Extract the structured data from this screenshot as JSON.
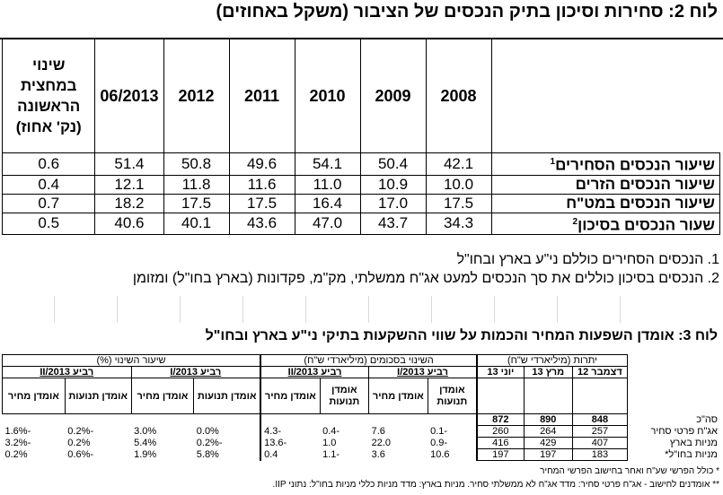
{
  "table2": {
    "title": "לוח 2: סחירות וסיכון בתיק הנכסים של הציבור (משקל באחוזים)",
    "headers": [
      "2008",
      "2009",
      "2010",
      "2011",
      "2012",
      "06/2013"
    ],
    "change_header": "שינוי במחצית הראשונה (נק' אחוז)",
    "rows": [
      {
        "label": "שיעור הנכסים הסחירים",
        "sup": "1",
        "values": [
          "42.1",
          "50.4",
          "54.1",
          "49.6",
          "50.8",
          "51.4"
        ],
        "change": "0.6"
      },
      {
        "label": "שיעור הנכסים הזרים",
        "sup": "",
        "values": [
          "10.0",
          "10.9",
          "11.0",
          "11.6",
          "11.8",
          "12.1"
        ],
        "change": "0.4"
      },
      {
        "label": "שיעור הנכסים במט\"ח",
        "sup": "",
        "values": [
          "17.5",
          "17.0",
          "16.4",
          "17.5",
          "17.5",
          "18.2"
        ],
        "change": "0.7"
      },
      {
        "label": "שעור הנכסים בסיכון",
        "sup": "2",
        "values": [
          "34.3",
          "43.7",
          "47.0",
          "43.6",
          "40.1",
          "40.6"
        ],
        "change": "0.5"
      }
    ],
    "footnotes": [
      "1. הנכסים הסחירים כוללם ני\"ע בארץ ובחו\"ל",
      "2. הנכסים בסיכון כוללים את סך הנכסים למעט אג\"ח ממשלתי, מק\"מ, פקדונות (בארץ בחו\"ל) ומזומן"
    ]
  },
  "table3": {
    "title": "לוח 3: אומדן השפעות המחיר והכמות על שווי ההשקעות בתיקי ני\"ע בארץ ובחו\"ל",
    "groups": {
      "balances": "יתרות (מיליארדי ש\"ח)",
      "change_amount": "השינוי בסכומים (מיליארדי ש\"ח)",
      "change_rate": "שיעור השינוי (%)"
    },
    "subheaders": {
      "dec12": "דצמבר 12",
      "mar13": "מרץ 13",
      "jun13": "יוני 13",
      "q1": "רביע I/2013",
      "q2": "רביע II/2013"
    },
    "leaf": {
      "flow_estimate": "אומדן תנועות",
      "price_estimate": "אומדן מחיר",
      "flow_estimate_l1": "אומדן",
      "flow_estimate_l2": "תנועות"
    },
    "rows": [
      {
        "label": "סה\"כ",
        "dec12": "848",
        "mar13": "890",
        "jun13": "872",
        "q1_flow": "",
        "q1_price": "",
        "q2_flow": "",
        "q2_price": "",
        "r1_flow": "",
        "r1_price": "",
        "r2_flow": "",
        "r2_price": ""
      },
      {
        "label": "אג\"ח פרטי סחיר",
        "dec12": "257",
        "mar13": "264",
        "jun13": "260",
        "q1_flow": "-0.1",
        "q1_price": "7.6",
        "q2_flow": "-0.4",
        "q2_price": "-4.3",
        "r1_flow": "0.0%",
        "r1_price": "3.0%",
        "r2_flow": "-0.2%",
        "r2_price": "-1.6%"
      },
      {
        "label": "מניות בארץ",
        "dec12": "407",
        "mar13": "429",
        "jun13": "416",
        "q1_flow": "-0.9",
        "q1_price": "22.0",
        "q2_flow": "1.0",
        "q2_price": "-13.6",
        "r1_flow": "-0.2%",
        "r1_price": "5.4%",
        "r2_flow": "0.2%",
        "r2_price": "-3.2%"
      },
      {
        "label": "מניות בחו\"ל*",
        "dec12": "183",
        "mar13": "197",
        "jun13": "197",
        "q1_flow": "10.6",
        "q1_price": "3.6",
        "q2_flow": "-1.1",
        "q2_price": "0.4",
        "r1_flow": "5.8%",
        "r1_price": "1.9%",
        "r2_flow": "-0.6%",
        "r2_price": "0.2%"
      }
    ],
    "footnotes": [
      "* כולל הפרשי שע\"ח ואחר בחישוב הפרשי המחיר",
      "** אומדנים לחישוב - אג\"ח פרטי סחיר: מדד אג\"ח לא ממשלתי סחיר. מניות בארץ: מדד מניות כללי מניות בחו\"ל: נתוני IIP."
    ]
  }
}
